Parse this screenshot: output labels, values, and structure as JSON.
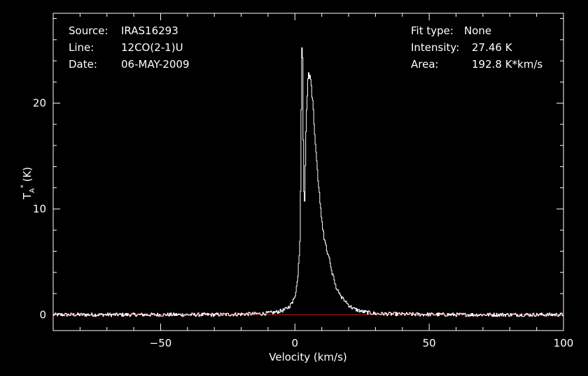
{
  "header": {
    "source_label": "Source:",
    "source_value": "IRAS16293",
    "line_label": "Line:",
    "line_value": "12CO(2-1)U",
    "date_label": "Date:",
    "date_value": "06-MAY-2009",
    "fit_label": "Fit type:",
    "fit_value": "None",
    "intensity_label": "Intensity:",
    "intensity_value": "27.46 K",
    "area_label": "Area:",
    "area_value": "192.8 K*km/s"
  },
  "colors": {
    "background": "#000000",
    "foreground": "#ffffff",
    "baseline": "#ff0000"
  },
  "chart_data": {
    "type": "line",
    "title": "",
    "xlabel": "Velocity (km/s)",
    "ylabel": "T",
    "ylabel_sub": "A",
    "ylabel_sup": "*",
    "ylabel_unit": "(K)",
    "xlim": [
      -90,
      100
    ],
    "ylim": [
      -1.5,
      28.5
    ],
    "xticks": [
      -50,
      0,
      50,
      100
    ],
    "xtick_labels": [
      "−50",
      "0",
      "50",
      "100"
    ],
    "yticks": [
      0,
      10,
      20
    ],
    "ytick_labels": [
      "0",
      "10",
      "20"
    ],
    "grid": false,
    "baseline_y": 0,
    "series": [
      {
        "x": [
          -90,
          -60,
          -30,
          -20,
          -12,
          -8,
          -6,
          -4,
          -3,
          -2,
          -1,
          0,
          1,
          2,
          2.5,
          2.8,
          3.0,
          3.3,
          3.6,
          3.9,
          4.3,
          4.7,
          5.2,
          5.8,
          6.5,
          7.2,
          8,
          9,
          10,
          11,
          12,
          13,
          14,
          15,
          16,
          18,
          20,
          22,
          25,
          30,
          40,
          60,
          80,
          100
        ],
        "y": [
          0,
          0,
          0,
          0.05,
          0.1,
          0.2,
          0.3,
          0.45,
          0.6,
          0.8,
          1.2,
          1.8,
          3.2,
          7.5,
          23.5,
          27.4,
          20.0,
          12.0,
          10.8,
          14.5,
          19.0,
          21.5,
          22.8,
          22.5,
          20.5,
          17.8,
          14.8,
          11.5,
          9.0,
          7.2,
          6.0,
          5.0,
          3.8,
          2.9,
          2.3,
          1.5,
          0.9,
          0.55,
          0.3,
          0.1,
          0.05,
          0,
          0,
          0
        ]
      }
    ]
  }
}
